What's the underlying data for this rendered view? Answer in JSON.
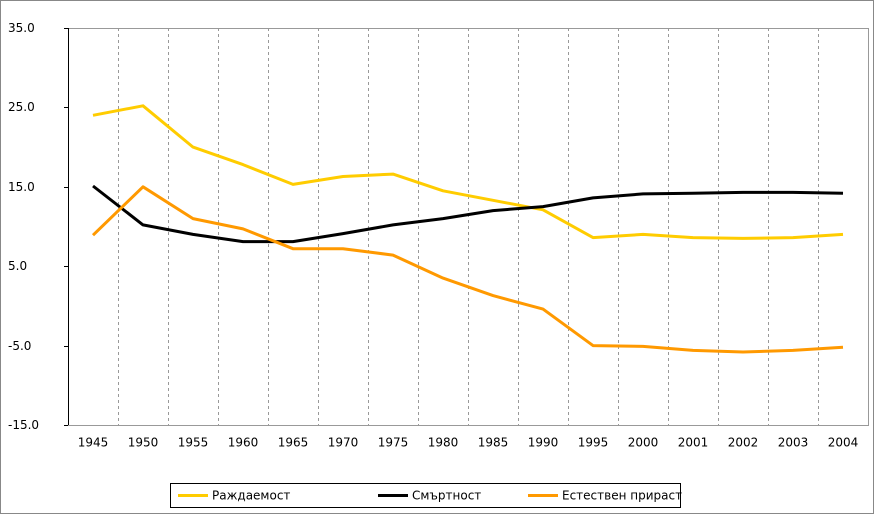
{
  "chart_data": {
    "type": "line",
    "categories": [
      "1945",
      "1950",
      "1955",
      "1960",
      "1965",
      "1970",
      "1975",
      "1980",
      "1985",
      "1990",
      "1995",
      "2000",
      "2001",
      "2002",
      "2003",
      "2004"
    ],
    "series": [
      {
        "name": "Раждаемост",
        "color": "#ffcc00",
        "values": [
          24.0,
          25.2,
          20.0,
          17.8,
          15.3,
          16.3,
          16.6,
          14.5,
          13.3,
          12.1,
          8.6,
          9.0,
          8.6,
          8.5,
          8.6,
          9.0
        ]
      },
      {
        "name": "Смъртност",
        "color": "#000000",
        "values": [
          15.1,
          10.2,
          9.0,
          8.1,
          8.1,
          9.1,
          10.2,
          11.0,
          12.0,
          12.5,
          13.6,
          14.1,
          14.2,
          14.3,
          14.3,
          14.2
        ]
      },
      {
        "name": "Естествен прираст",
        "color": "#ff9900",
        "values": [
          8.9,
          15.0,
          11.0,
          9.7,
          7.2,
          7.2,
          6.4,
          3.5,
          1.3,
          -0.4,
          -5.0,
          -5.1,
          -5.6,
          -5.8,
          -5.6,
          -5.2
        ]
      }
    ],
    "ylim": [
      -15,
      35
    ],
    "yticks": [
      {
        "value": -15,
        "label": "-15.0"
      },
      {
        "value": -5,
        "label": "-5.0"
      },
      {
        "value": 5,
        "label": "5.0"
      },
      {
        "value": 15,
        "label": "15.0"
      },
      {
        "value": 25,
        "label": "25.0"
      },
      {
        "value": 35,
        "label": "35.0"
      }
    ],
    "grid": "x",
    "legend": "bottom"
  }
}
